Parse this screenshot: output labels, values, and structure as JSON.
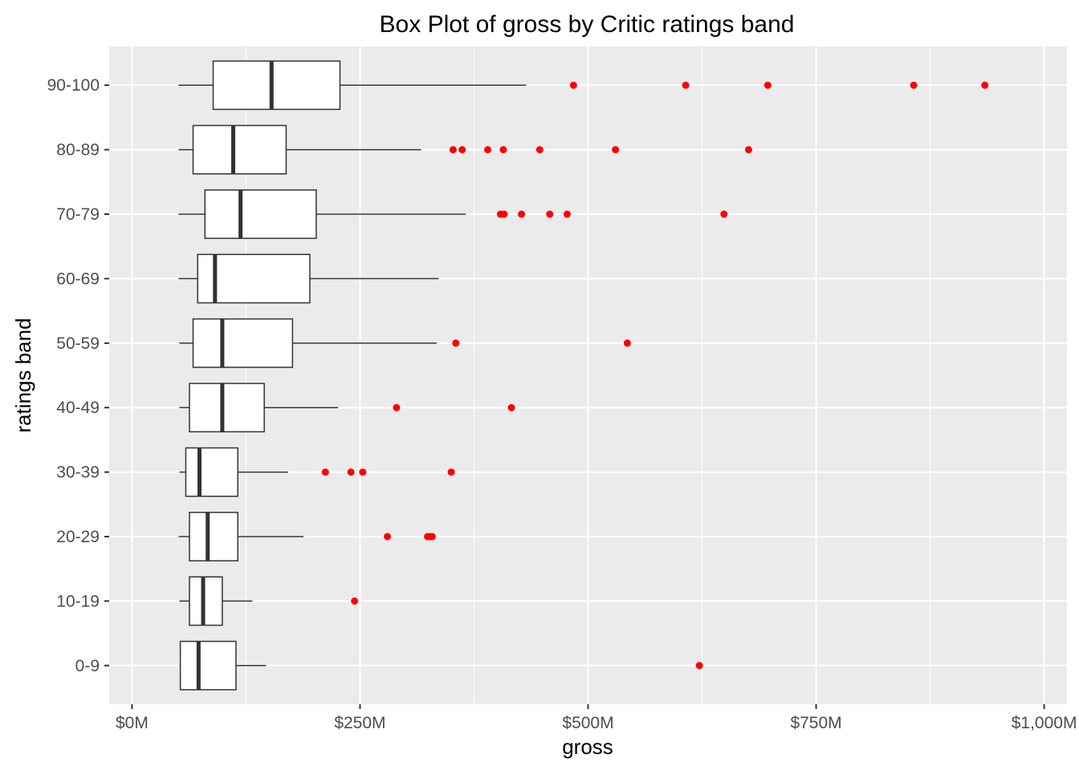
{
  "chart_data": {
    "type": "boxplot",
    "title": "Box Plot of gross by Critic ratings band",
    "xlabel": "gross",
    "ylabel": "ratings band",
    "xlim": [
      -25,
      1025
    ],
    "x_ticks": [
      0,
      250,
      500,
      750,
      1000
    ],
    "x_tick_labels": [
      "$0M",
      "$250M",
      "$500M",
      "$750M",
      "$1,000M"
    ],
    "x_minor_ticks": [
      125,
      375,
      625,
      875
    ],
    "categories": [
      "0-9",
      "10-19",
      "20-29",
      "30-39",
      "40-49",
      "50-59",
      "60-69",
      "70-79",
      "80-89",
      "90-100"
    ],
    "boxes": [
      {
        "category": "0-9",
        "whisker_low": 52,
        "q1": 53,
        "median": 73,
        "q3": 114,
        "whisker_high": 147,
        "outliers": [
          622
        ]
      },
      {
        "category": "10-19",
        "whisker_low": 52,
        "q1": 63,
        "median": 78,
        "q3": 99,
        "whisker_high": 132,
        "outliers": [
          244
        ]
      },
      {
        "category": "20-29",
        "whisker_low": 51,
        "q1": 63,
        "median": 83,
        "q3": 116,
        "whisker_high": 188,
        "outliers": [
          280,
          324,
          327,
          329
        ]
      },
      {
        "category": "30-39",
        "whisker_low": 52,
        "q1": 59,
        "median": 74,
        "q3": 116,
        "whisker_high": 171,
        "outliers": [
          212,
          240,
          253,
          350
        ]
      },
      {
        "category": "40-49",
        "whisker_low": 52,
        "q1": 63,
        "median": 99,
        "q3": 145,
        "whisker_high": 226,
        "outliers": [
          290,
          416
        ]
      },
      {
        "category": "50-59",
        "whisker_low": 52,
        "q1": 67,
        "median": 99,
        "q3": 176,
        "whisker_high": 334,
        "outliers": [
          355,
          543
        ]
      },
      {
        "category": "60-69",
        "whisker_low": 51,
        "q1": 72,
        "median": 91,
        "q3": 195,
        "whisker_high": 336,
        "outliers": []
      },
      {
        "category": "70-79",
        "whisker_low": 51,
        "q1": 80,
        "median": 119,
        "q3": 202,
        "whisker_high": 366,
        "outliers": [
          404,
          408,
          427,
          458,
          477,
          649
        ]
      },
      {
        "category": "80-89",
        "whisker_low": 51,
        "q1": 67,
        "median": 111,
        "q3": 169,
        "whisker_high": 317,
        "outliers": [
          352,
          362,
          390,
          407,
          447,
          530,
          676
        ]
      },
      {
        "category": "90-100",
        "whisker_low": 51,
        "q1": 89,
        "median": 153,
        "q3": 228,
        "whisker_high": 432,
        "outliers": [
          484,
          607,
          697,
          857,
          935
        ]
      }
    ],
    "colors": {
      "panel_background": "#ebebeb",
      "grid": "#ffffff",
      "box_fill": "#ffffff",
      "box_line": "#333333",
      "outlier": "#ff0000"
    },
    "grid": true,
    "legend": "none"
  }
}
